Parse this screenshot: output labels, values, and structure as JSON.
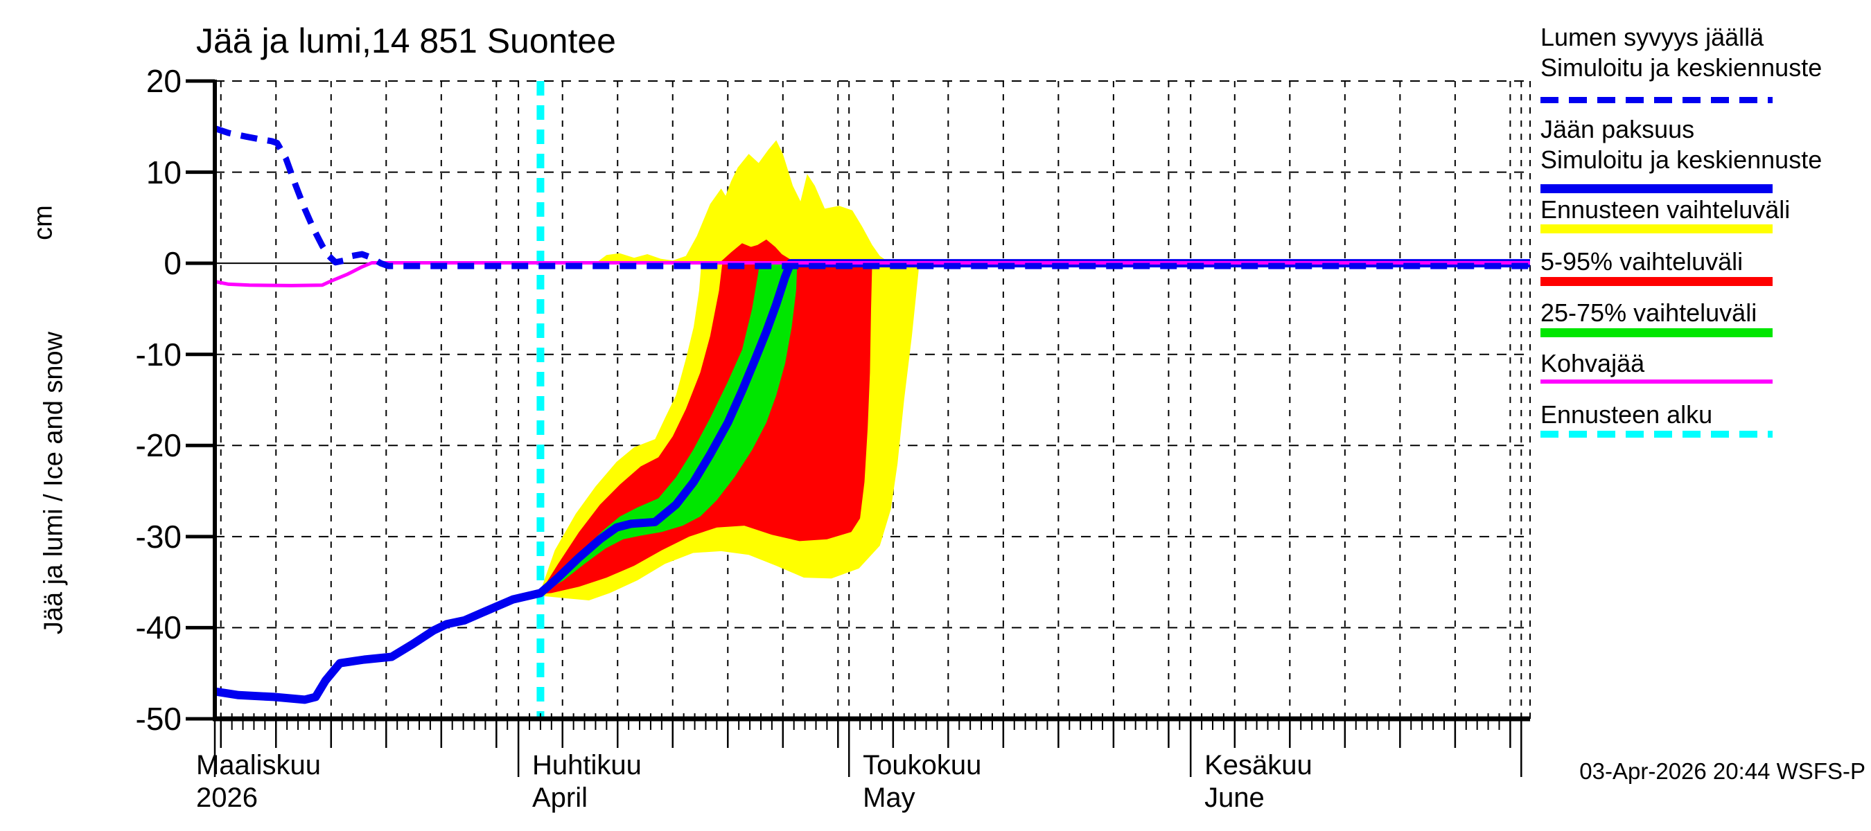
{
  "title": "Jää ja lumi,14 851 Suontee",
  "station": "14 851 Suontee",
  "footer": "03-Apr-2026 20:44 WSFS-P",
  "y_axis": {
    "unit_label": "cm",
    "axis_label": "Jää ja lumi / Ice and snow",
    "tick_values": [
      20,
      10,
      0,
      -10,
      -20,
      -30,
      -40,
      -50
    ],
    "range": [
      -50,
      20
    ]
  },
  "x_axis": {
    "range_days": [
      3.45,
      122.8
    ],
    "day0": "2026-03-01",
    "months": [
      {
        "fi": "Maaliskuu",
        "en": "2026",
        "tick_day": 3.45,
        "label_day": 1.75
      },
      {
        "fi": "Huhtikuu",
        "en": "April",
        "tick_day": 31,
        "label_day": 32.25
      },
      {
        "fi": "Toukokuu",
        "en": "May",
        "tick_day": 61,
        "label_day": 62.25
      },
      {
        "fi": "Kesäkuu",
        "en": "June",
        "tick_day": 92,
        "label_day": 93.25
      }
    ],
    "five_day_grid_days": [
      4,
      9,
      14,
      19,
      24,
      29,
      35,
      40,
      45,
      50,
      55,
      60,
      65,
      70,
      75,
      80,
      85,
      90,
      96,
      101,
      106,
      111,
      116,
      121
    ],
    "month_grid_days": [
      31,
      61,
      92,
      122
    ],
    "right_edge_day": 122.8
  },
  "colors": {
    "blue": "#0000f0",
    "yellow": "#ffff00",
    "red": "#ff0000",
    "green": "#00e600",
    "magenta": "#ff00ff",
    "cyan": "#00ffff",
    "grid": "#000000"
  },
  "legend": {
    "items": [
      {
        "lines": [
          "Lumen syvyys jäällä",
          "Simuloitu ja keskiennuste"
        ],
        "color": "#0000f0",
        "style": "dashed",
        "thickness": 9
      },
      {
        "lines": [
          "Jään paksuus",
          "Simuloitu ja keskiennuste"
        ],
        "color": "#0000f0",
        "style": "solid",
        "thickness": 13
      },
      {
        "lines": [
          "Ennusteen vaihteluväli"
        ],
        "color": "#ffff00",
        "style": "solid",
        "thickness": 13
      },
      {
        "lines": [
          "5-95% vaihteluväli"
        ],
        "color": "#ff0000",
        "style": "solid",
        "thickness": 13
      },
      {
        "lines": [
          "25-75% vaihteluväli"
        ],
        "color": "#00e600",
        "style": "solid",
        "thickness": 13
      },
      {
        "lines": [
          "Kohvajää"
        ],
        "color": "#ff00ff",
        "style": "solid",
        "thickness": 6
      },
      {
        "lines": [
          "Ennusteen alku"
        ],
        "color": "#00ffff",
        "style": "dashed",
        "thickness": 10
      }
    ]
  },
  "chart_data": {
    "type": "line",
    "x_unit": "days since 2026-03-01",
    "y_unit": "cm",
    "grid": "on",
    "legend_position": "right-outside",
    "forecast_start_day": 33.0,
    "series": {
      "snow_depth_median": {
        "label": "Lumen syvyys jäällä - Simuloitu ja keskiennuste",
        "points": [
          [
            3.45,
            14.8
          ],
          [
            4.7,
            14.3
          ],
          [
            6.3,
            13.9
          ],
          [
            7.6,
            13.6
          ],
          [
            8.6,
            13.4
          ],
          [
            9.1,
            13.2
          ],
          [
            9.9,
            11.5
          ],
          [
            10.8,
            8.5
          ],
          [
            11.6,
            6.0
          ],
          [
            12.4,
            3.8
          ],
          [
            13.2,
            1.9
          ],
          [
            13.8,
            0.8
          ],
          [
            14.4,
            0.1
          ],
          [
            15.2,
            0.3
          ],
          [
            15.9,
            0.8
          ],
          [
            16.8,
            1.0
          ],
          [
            17.7,
            0.6
          ],
          [
            18.5,
            0.0
          ],
          [
            19.2,
            -0.3
          ],
          [
            122.8,
            -0.3
          ]
        ]
      },
      "ice_thickness_median": {
        "label": "Jään paksuus - Simuloitu ja keskiennuste",
        "points": [
          [
            3.45,
            -47.0
          ],
          [
            5.6,
            -47.4
          ],
          [
            8.8,
            -47.6
          ],
          [
            11.6,
            -47.9
          ],
          [
            12.6,
            -47.6
          ],
          [
            13.5,
            -45.8
          ],
          [
            14.8,
            -43.9
          ],
          [
            17.0,
            -43.5
          ],
          [
            19.5,
            -43.2
          ],
          [
            21.4,
            -41.8
          ],
          [
            23.3,
            -40.3
          ],
          [
            24.5,
            -39.6
          ],
          [
            26.1,
            -39.2
          ],
          [
            28.0,
            -38.2
          ],
          [
            30.5,
            -36.9
          ],
          [
            33.0,
            -36.2
          ],
          [
            34.6,
            -34.5
          ],
          [
            36.5,
            -32.3
          ],
          [
            38.4,
            -30.3
          ],
          [
            39.9,
            -29.0
          ],
          [
            41.2,
            -28.6
          ],
          [
            43.4,
            -28.4
          ],
          [
            45.3,
            -26.5
          ],
          [
            46.9,
            -24.0
          ],
          [
            48.4,
            -21.0
          ],
          [
            50.0,
            -17.5
          ],
          [
            51.3,
            -14.0
          ],
          [
            52.5,
            -10.5
          ],
          [
            53.5,
            -7.5
          ],
          [
            54.4,
            -4.5
          ],
          [
            55.2,
            -1.5
          ],
          [
            55.7,
            0.0
          ],
          [
            122.8,
            0.0
          ]
        ]
      },
      "kohvajaa": {
        "label": "Kohvajää",
        "points": [
          [
            3.45,
            -2.0
          ],
          [
            4.7,
            -2.3
          ],
          [
            6.6,
            -2.4
          ],
          [
            10.4,
            -2.45
          ],
          [
            13.2,
            -2.4
          ],
          [
            13.9,
            -2.0
          ],
          [
            15.5,
            -1.2
          ],
          [
            16.8,
            -0.4
          ],
          [
            17.7,
            0.05
          ],
          [
            122.8,
            0.05
          ]
        ]
      }
    },
    "bands": {
      "yellow_below": {
        "label": "Ennusteen vaihteluväli (jää)",
        "upper": [
          [
            33.0,
            -36.0
          ],
          [
            34.3,
            -31.5
          ],
          [
            36.2,
            -27.5
          ],
          [
            38.0,
            -24.5
          ],
          [
            39.9,
            -21.8
          ],
          [
            41.5,
            -20.2
          ],
          [
            43.4,
            -19.3
          ],
          [
            44.3,
            -17.0
          ],
          [
            45.3,
            -14.5
          ],
          [
            46.2,
            -10.5
          ],
          [
            46.9,
            -7.0
          ],
          [
            47.4,
            -3.0
          ],
          [
            47.6,
            0.0
          ],
          [
            67.35,
            0.0
          ]
        ],
        "lower": [
          [
            33.0,
            -36.5
          ],
          [
            35.5,
            -36.8
          ],
          [
            37.4,
            -37.0
          ],
          [
            39.3,
            -36.2
          ],
          [
            41.8,
            -34.8
          ],
          [
            44.3,
            -33.0
          ],
          [
            46.85,
            -31.8
          ],
          [
            49.4,
            -31.6
          ],
          [
            51.9,
            -32.0
          ],
          [
            54.4,
            -33.2
          ],
          [
            56.9,
            -34.5
          ],
          [
            59.4,
            -34.6
          ],
          [
            61.9,
            -33.5
          ],
          [
            63.8,
            -31.0
          ],
          [
            64.8,
            -27.0
          ],
          [
            65.4,
            -22.0
          ],
          [
            66.0,
            -15.0
          ],
          [
            66.7,
            -8.0
          ],
          [
            67.3,
            -1.0
          ],
          [
            67.35,
            0.0
          ]
        ]
      },
      "red_below": {
        "label": "5-95% vaihteluväli (jää)",
        "upper": [
          [
            33.0,
            -36.1
          ],
          [
            34.6,
            -33.0
          ],
          [
            36.5,
            -29.5
          ],
          [
            38.4,
            -26.5
          ],
          [
            40.2,
            -24.3
          ],
          [
            42.1,
            -22.3
          ],
          [
            43.7,
            -21.3
          ],
          [
            45.0,
            -19.0
          ],
          [
            46.2,
            -16.0
          ],
          [
            47.5,
            -12.0
          ],
          [
            48.4,
            -8.0
          ],
          [
            49.2,
            -3.0
          ],
          [
            49.5,
            0.0
          ],
          [
            63.1,
            0.0
          ]
        ],
        "lower": [
          [
            33.0,
            -36.3
          ],
          [
            34.0,
            -36.2
          ],
          [
            36.5,
            -35.5
          ],
          [
            39.0,
            -34.5
          ],
          [
            41.5,
            -33.2
          ],
          [
            44.0,
            -31.5
          ],
          [
            46.5,
            -30.0
          ],
          [
            49.0,
            -29.0
          ],
          [
            51.5,
            -28.8
          ],
          [
            54.0,
            -29.8
          ],
          [
            56.5,
            -30.5
          ],
          [
            59.0,
            -30.3
          ],
          [
            61.2,
            -29.5
          ],
          [
            62.0,
            -28.0
          ],
          [
            62.4,
            -24.0
          ],
          [
            62.7,
            -18.0
          ],
          [
            62.9,
            -12.0
          ],
          [
            63.0,
            -5.0
          ],
          [
            63.1,
            0.0
          ]
        ]
      },
      "green_below": {
        "label": "25-75% vaihteluväli (jää)",
        "upper": [
          [
            33.0,
            -36.2
          ],
          [
            34.9,
            -34.0
          ],
          [
            36.8,
            -31.5
          ],
          [
            38.7,
            -29.3
          ],
          [
            40.2,
            -27.8
          ],
          [
            41.8,
            -26.8
          ],
          [
            43.7,
            -25.8
          ],
          [
            45.3,
            -23.5
          ],
          [
            46.85,
            -20.5
          ],
          [
            48.4,
            -17.0
          ],
          [
            50.0,
            -13.0
          ],
          [
            51.3,
            -9.5
          ],
          [
            52.2,
            -5.0
          ],
          [
            52.7,
            -1.5
          ],
          [
            52.9,
            0.0
          ],
          [
            56.3,
            0.0
          ]
        ],
        "lower": [
          [
            33.0,
            -36.3
          ],
          [
            35.1,
            -34.8
          ],
          [
            37.0,
            -33.0
          ],
          [
            38.9,
            -31.3
          ],
          [
            40.5,
            -30.3
          ],
          [
            42.1,
            -29.9
          ],
          [
            44.0,
            -29.5
          ],
          [
            45.9,
            -28.8
          ],
          [
            47.5,
            -27.8
          ],
          [
            49.0,
            -26.0
          ],
          [
            50.6,
            -23.5
          ],
          [
            52.2,
            -20.5
          ],
          [
            53.5,
            -17.5
          ],
          [
            54.4,
            -14.5
          ],
          [
            55.2,
            -11.0
          ],
          [
            55.8,
            -7.0
          ],
          [
            56.2,
            -3.0
          ],
          [
            56.3,
            0.0
          ]
        ]
      },
      "yellow_above": {
        "label": "Ennusteen vaihteluväli (lumi)",
        "upper": [
          [
            38.0,
            0
          ],
          [
            39.0,
            0.9
          ],
          [
            40.2,
            1.1
          ],
          [
            41.5,
            0.6
          ],
          [
            42.7,
            1.0
          ],
          [
            43.9,
            0.5
          ],
          [
            45.0,
            0.3
          ],
          [
            46.2,
            0.8
          ],
          [
            47.2,
            3.0
          ],
          [
            48.4,
            6.5
          ],
          [
            49.4,
            8.2
          ],
          [
            49.8,
            7.4
          ],
          [
            50.3,
            9.0
          ],
          [
            50.9,
            10.5
          ],
          [
            51.9,
            12.0
          ],
          [
            52.8,
            11.0
          ],
          [
            53.7,
            12.5
          ],
          [
            54.4,
            13.5
          ],
          [
            55.0,
            12.0
          ],
          [
            55.9,
            8.5
          ],
          [
            56.6,
            6.8
          ],
          [
            57.2,
            9.8
          ],
          [
            57.9,
            8.5
          ],
          [
            58.8,
            6.0
          ],
          [
            60.1,
            6.3
          ],
          [
            61.3,
            5.8
          ],
          [
            62.2,
            4.0
          ],
          [
            63.1,
            2.0
          ],
          [
            63.8,
            0.8
          ],
          [
            64.4,
            0.3
          ],
          [
            65.3,
            0.0
          ]
        ],
        "lower": [
          [
            38.0,
            0
          ],
          [
            65.3,
            0.0
          ]
        ]
      },
      "red_above": {
        "label": "5-95% vaihteluväli (lumi)",
        "upper": [
          [
            49.2,
            0
          ],
          [
            50.3,
            1.2
          ],
          [
            51.3,
            2.2
          ],
          [
            52.1,
            1.8
          ],
          [
            52.7,
            2.0
          ],
          [
            53.5,
            2.6
          ],
          [
            54.3,
            1.8
          ],
          [
            54.9,
            1.0
          ],
          [
            55.7,
            0.4
          ],
          [
            56.3,
            0.0
          ]
        ],
        "lower": [
          [
            49.2,
            0
          ],
          [
            56.3,
            0.0
          ]
        ]
      }
    }
  }
}
